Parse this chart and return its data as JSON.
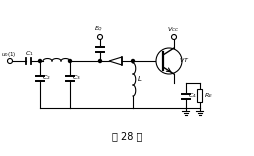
{
  "title": "题 28 图",
  "bg_color": "#ffffff",
  "line_color": "#000000",
  "figsize": [
    2.55,
    1.56
  ],
  "dpi": 100
}
